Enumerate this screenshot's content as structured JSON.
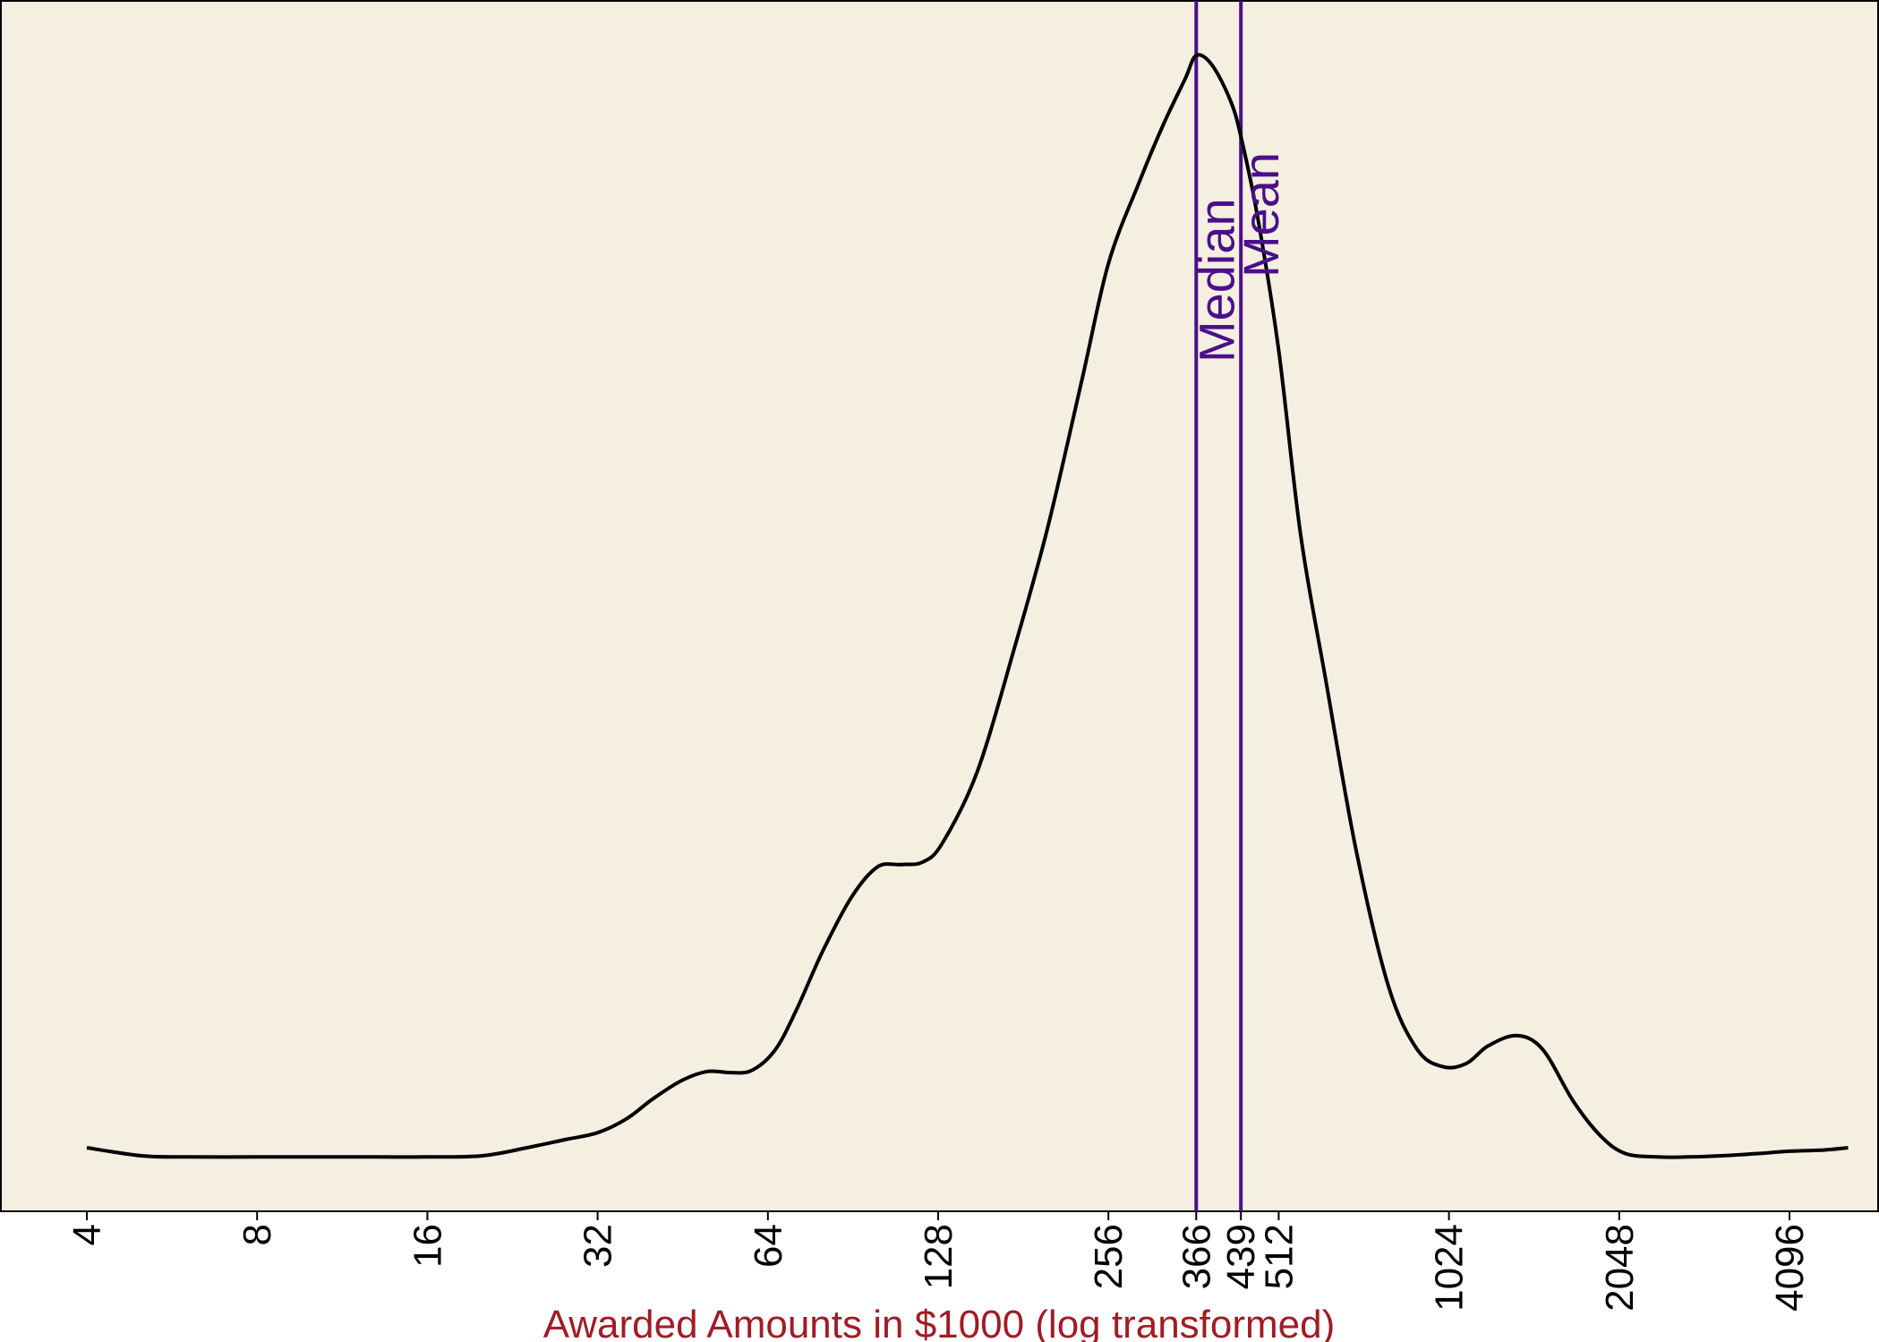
{
  "chart_data": {
    "type": "line",
    "title": "",
    "xlabel": "Awarded Amounts in $1000 (log transformed)",
    "ylabel": "",
    "x_scale": "log2",
    "xlim": [
      4,
      5800
    ],
    "ylim": [
      0,
      1.0
    ],
    "grid": false,
    "legend": "none",
    "x_ticks": [
      4,
      8,
      16,
      32,
      64,
      128,
      256,
      366,
      439,
      512,
      1024,
      2048,
      4096
    ],
    "x_tick_labels": [
      "4",
      "8",
      "16",
      "32",
      "64",
      "128",
      "256",
      "366",
      "439",
      "512",
      "1024",
      "2048",
      "4096"
    ],
    "series": [
      {
        "x": [
          4,
          5,
          6,
          8,
          10,
          13,
          16,
          20,
          24,
          28,
          32,
          36,
          40,
          45,
          50,
          55,
          60,
          66,
          72,
          80,
          90,
          100,
          110,
          120,
          130,
          150,
          175,
          200,
          230,
          256,
          290,
          320,
          350,
          366,
          390,
          420,
          439,
          470,
          512,
          560,
          620,
          700,
          800,
          900,
          1000,
          1100,
          1200,
          1350,
          1500,
          1700,
          1900,
          2100,
          2400,
          2700,
          3100,
          3600,
          4096,
          4700,
          5200
        ],
        "y": [
          0.055,
          0.048,
          0.047,
          0.047,
          0.047,
          0.047,
          0.047,
          0.048,
          0.055,
          0.062,
          0.068,
          0.08,
          0.097,
          0.113,
          0.121,
          0.12,
          0.122,
          0.14,
          0.175,
          0.225,
          0.272,
          0.298,
          0.3,
          0.302,
          0.318,
          0.38,
          0.489,
          0.592,
          0.72,
          0.82,
          0.89,
          0.94,
          0.98,
          1.0,
          0.992,
          0.962,
          0.93,
          0.86,
          0.745,
          0.585,
          0.46,
          0.315,
          0.195,
          0.14,
          0.125,
          0.128,
          0.143,
          0.152,
          0.14,
          0.095,
          0.065,
          0.05,
          0.047,
          0.047,
          0.048,
          0.05,
          0.052,
          0.053,
          0.055
        ]
      }
    ],
    "reference_lines": [
      {
        "x": 366,
        "label": "Median",
        "color": "#4b0f8a"
      },
      {
        "x": 439,
        "label": "Mean",
        "color": "#4b0f8a"
      }
    ],
    "colors": {
      "plot_background": "#f4efe1",
      "curve": "#000000",
      "xlabel": "#a01c25"
    }
  }
}
